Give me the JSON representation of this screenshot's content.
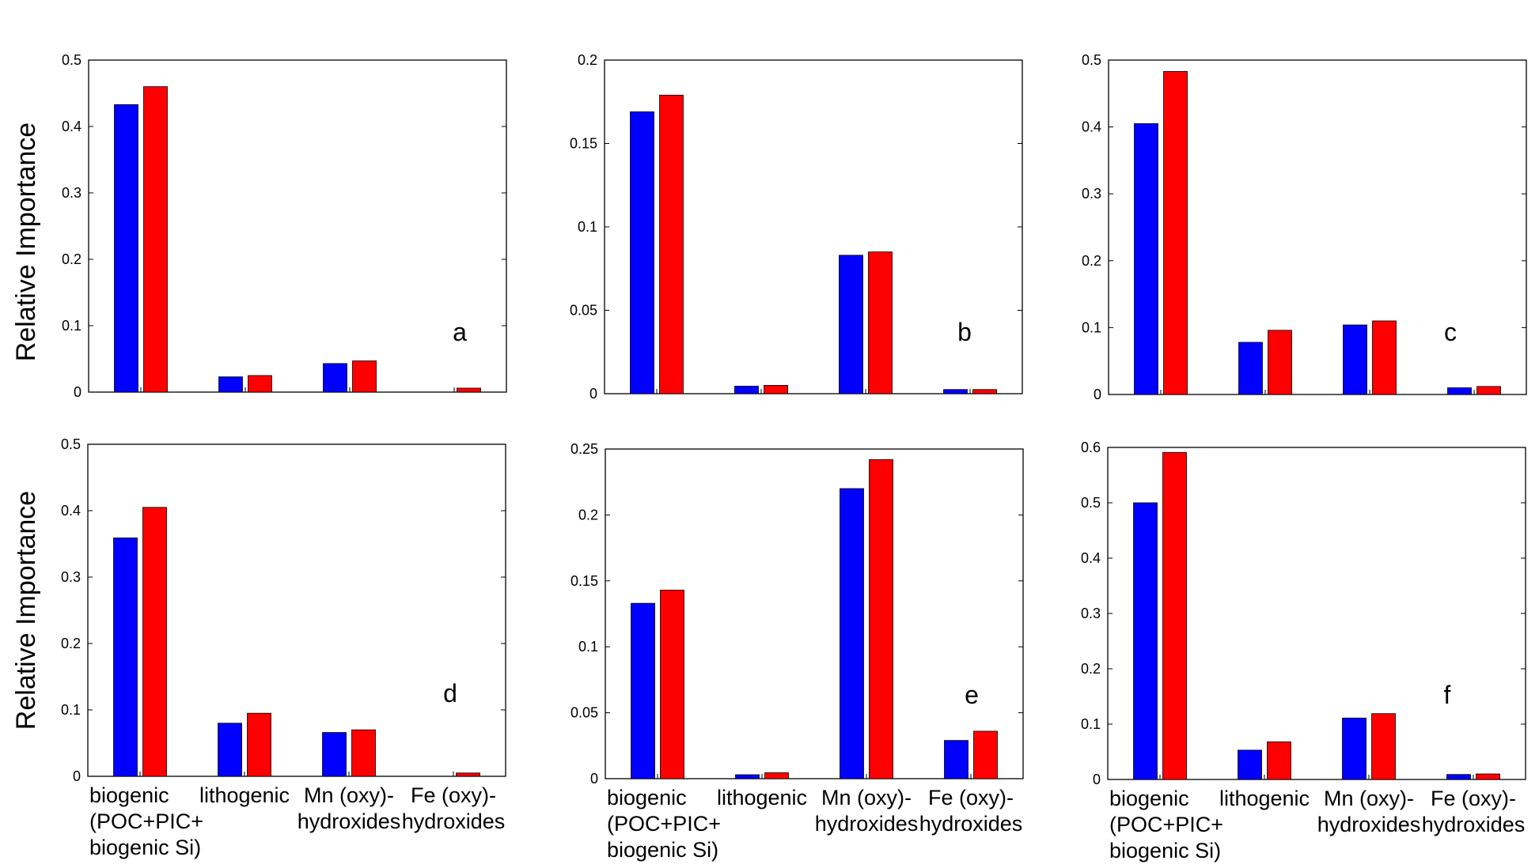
{
  "colors": {
    "series_a": "#0000ff",
    "series_b": "#ff0000",
    "axes": "#000000"
  },
  "chart_data": [
    {
      "type": "bar",
      "panel_label": "a",
      "ylabel": "Relative Importance",
      "categories": [
        [
          "biogenic",
          "(POC+PIC+",
          "biogenic Si)"
        ],
        [
          "lithogenic"
        ],
        [
          "Mn (oxy)-",
          "hydroxides"
        ],
        [
          "Fe (oxy)-",
          "hydroxides"
        ]
      ],
      "show_category_labels": false,
      "ylim": [
        0,
        0.5
      ],
      "yticks": [
        0,
        0.1,
        0.2,
        0.3,
        0.4,
        0.5
      ],
      "ytick_labels": [
        "0",
        "0.1",
        "0.2",
        "0.3",
        "0.4",
        "0.5"
      ],
      "series": [
        {
          "values": [
            0.433,
            0.023,
            0.043,
            0.0
          ]
        },
        {
          "values": [
            0.46,
            0.025,
            0.047,
            0.006
          ]
        }
      ]
    },
    {
      "type": "bar",
      "panel_label": "b",
      "ylabel": "",
      "categories": [
        [
          "biogenic",
          "(POC+PIC+",
          "biogenic Si)"
        ],
        [
          "lithogenic"
        ],
        [
          "Mn (oxy)-",
          "hydroxides"
        ],
        [
          "Fe (oxy)-",
          "hydroxides"
        ]
      ],
      "show_category_labels": false,
      "ylim": [
        0,
        0.2
      ],
      "yticks": [
        0,
        0.05,
        0.1,
        0.15,
        0.2
      ],
      "ytick_labels": [
        "0",
        "0.05",
        "0.1",
        "0.15",
        "0.2"
      ],
      "series": [
        {
          "values": [
            0.169,
            0.0045,
            0.083,
            0.0025
          ]
        },
        {
          "values": [
            0.179,
            0.005,
            0.085,
            0.0025
          ]
        }
      ]
    },
    {
      "type": "bar",
      "panel_label": "c",
      "ylabel": "",
      "categories": [
        [
          "biogenic",
          "(POC+PIC+",
          "biogenic Si)"
        ],
        [
          "lithogenic"
        ],
        [
          "Mn (oxy)-",
          "hydroxides"
        ],
        [
          "Fe (oxy)-",
          "hydroxides"
        ]
      ],
      "show_category_labels": false,
      "ylim": [
        0,
        0.5
      ],
      "yticks": [
        0,
        0.1,
        0.2,
        0.3,
        0.4,
        0.5
      ],
      "ytick_labels": [
        "0",
        "0.1",
        "0.2",
        "0.3",
        "0.4",
        "0.5"
      ],
      "series": [
        {
          "values": [
            0.405,
            0.078,
            0.104,
            0.01
          ]
        },
        {
          "values": [
            0.483,
            0.096,
            0.11,
            0.012
          ]
        }
      ]
    },
    {
      "type": "bar",
      "panel_label": "d",
      "ylabel": "Relative Importance",
      "categories": [
        [
          "biogenic",
          "(POC+PIC+",
          "biogenic Si)"
        ],
        [
          "lithogenic"
        ],
        [
          "Mn (oxy)-",
          "hydroxides"
        ],
        [
          "Fe (oxy)-",
          "hydroxides"
        ]
      ],
      "show_category_labels": true,
      "ylim": [
        0,
        0.5
      ],
      "yticks": [
        0,
        0.1,
        0.2,
        0.3,
        0.4,
        0.5
      ],
      "ytick_labels": [
        "0",
        "0.1",
        "0.2",
        "0.3",
        "0.4",
        "0.5"
      ],
      "series": [
        {
          "values": [
            0.359,
            0.08,
            0.066,
            0.0
          ]
        },
        {
          "values": [
            0.405,
            0.095,
            0.07,
            0.005
          ]
        }
      ]
    },
    {
      "type": "bar",
      "panel_label": "e",
      "ylabel": "",
      "categories": [
        [
          "biogenic",
          "(POC+PIC+",
          "biogenic Si)"
        ],
        [
          "lithogenic"
        ],
        [
          "Mn (oxy)-",
          "hydroxides"
        ],
        [
          "Fe (oxy)-",
          "hydroxides"
        ]
      ],
      "show_category_labels": true,
      "ylim": [
        0,
        0.25
      ],
      "yticks": [
        0,
        0.05,
        0.1,
        0.15,
        0.2,
        0.25
      ],
      "ytick_labels": [
        "0",
        "0.05",
        "0.1",
        "0.15",
        "0.2",
        "0.25"
      ],
      "series": [
        {
          "values": [
            0.133,
            0.003,
            0.22,
            0.029
          ]
        },
        {
          "values": [
            0.143,
            0.0045,
            0.242,
            0.036
          ]
        }
      ]
    },
    {
      "type": "bar",
      "panel_label": "f",
      "ylabel": "",
      "categories": [
        [
          "biogenic",
          "(POC+PIC+",
          "biogenic Si)"
        ],
        [
          "lithogenic"
        ],
        [
          "Mn (oxy)-",
          "hydroxides"
        ],
        [
          "Fe (oxy)-",
          "hydroxides"
        ]
      ],
      "show_category_labels": true,
      "ylim": [
        0,
        0.6
      ],
      "yticks": [
        0,
        0.1,
        0.2,
        0.3,
        0.4,
        0.5,
        0.6
      ],
      "ytick_labels": [
        "0",
        "0.1",
        "0.2",
        "0.3",
        "0.4",
        "0.5",
        "0.6"
      ],
      "series": [
        {
          "values": [
            0.5,
            0.053,
            0.111,
            0.009
          ]
        },
        {
          "values": [
            0.591,
            0.068,
            0.119,
            0.01
          ]
        }
      ]
    }
  ]
}
